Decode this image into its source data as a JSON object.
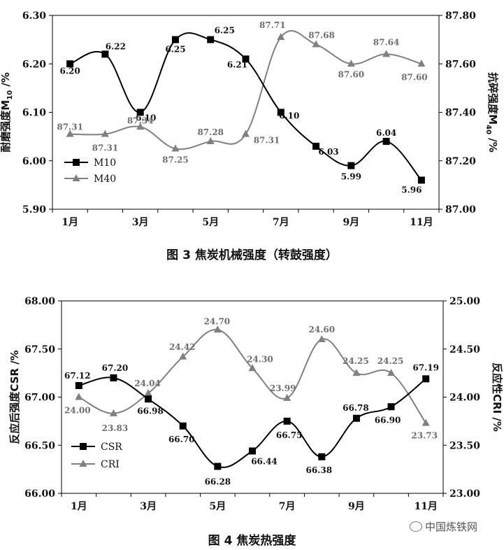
{
  "chart_data": [
    {
      "type": "line",
      "caption": "图 3    焦炭机械强度（转鼓强度）",
      "categories": [
        "1月",
        "2月",
        "3月",
        "4月",
        "5月",
        "6月",
        "7月",
        "8月",
        "9月",
        "10月",
        "11月"
      ],
      "x_tick_labels": [
        "1月",
        "",
        "3月",
        "",
        "5月",
        "",
        "7月",
        "",
        "9月",
        "",
        "11月"
      ],
      "series": [
        {
          "name": "M10",
          "axis": "left",
          "color": "#000000",
          "marker": "square",
          "values": [
            6.2,
            6.22,
            6.1,
            6.25,
            6.25,
            6.21,
            6.1,
            6.03,
            5.99,
            6.04,
            5.96
          ],
          "labels": [
            "6.20",
            "6.22",
            "6.10",
            "6.25",
            "6.25",
            "6.21",
            "6.10",
            "6.03",
            "5.99",
            "6.04",
            "5.96"
          ]
        },
        {
          "name": "M40",
          "axis": "right",
          "color": "#808080",
          "marker": "triangle",
          "values": [
            87.31,
            87.31,
            87.34,
            87.25,
            87.28,
            87.31,
            87.71,
            87.68,
            87.6,
            87.64,
            87.6
          ],
          "labels": [
            "87.31",
            "87.31",
            "87.34",
            "87.25",
            "87.28",
            "87.31",
            "87.71",
            "87.68",
            "87.60",
            "87.64",
            "87.60"
          ]
        }
      ],
      "y_left": {
        "label": "耐磨强度M10 /%",
        "label_main": "耐磨强度M",
        "label_sub": "10",
        "label_unit": " /%",
        "ylim": [
          5.9,
          6.3
        ],
        "ticks": [
          "5.90",
          "6.00",
          "6.10",
          "6.20",
          "6.30"
        ]
      },
      "y_right": {
        "label": "抗碎强度M40 /%",
        "label_main": "抗碎强度M",
        "label_sub": "40",
        "label_unit": " /%",
        "ylim": [
          87.0,
          87.8
        ],
        "ticks": [
          "87.00",
          "87.20",
          "87.40",
          "87.60",
          "87.80"
        ]
      },
      "legend": [
        "M10",
        "M40"
      ],
      "legend_position": "bottom-left"
    },
    {
      "type": "line",
      "caption": "图 4    焦炭热强度",
      "categories": [
        "1月",
        "2月",
        "3月",
        "4月",
        "5月",
        "6月",
        "7月",
        "8月",
        "9月",
        "10月",
        "11月"
      ],
      "x_tick_labels": [
        "1月",
        "",
        "3月",
        "",
        "5月",
        "",
        "7月",
        "",
        "9月",
        "",
        "11月"
      ],
      "series": [
        {
          "name": "CSR",
          "axis": "left",
          "color": "#000000",
          "marker": "square",
          "values": [
            67.12,
            67.2,
            66.98,
            66.7,
            66.28,
            66.44,
            66.75,
            66.38,
            66.78,
            66.9,
            67.19
          ],
          "labels": [
            "67.12",
            "67.20",
            "66.98",
            "66.70",
            "66.28",
            "66.44",
            "66.75",
            "66.38",
            "66.78",
            "66.90",
            "67.19"
          ]
        },
        {
          "name": "CRI",
          "axis": "right",
          "color": "#808080",
          "marker": "triangle",
          "values": [
            24.0,
            23.83,
            24.04,
            24.42,
            24.7,
            24.3,
            23.99,
            24.6,
            24.25,
            24.25,
            23.73
          ],
          "labels": [
            "24.00",
            "23.83",
            "24.04",
            "24.42",
            "24.70",
            "24.30",
            "23.99",
            "24.60",
            "24.25",
            "24.25",
            "23.73"
          ]
        }
      ],
      "y_left": {
        "label": "反应后强度CSR /%",
        "label_main": "反应后强度CSR",
        "label_sub": "",
        "label_unit": " /%",
        "ylim": [
          66.0,
          68.0
        ],
        "ticks": [
          "66.00",
          "66.50",
          "67.00",
          "67.50",
          "68.00"
        ]
      },
      "y_right": {
        "label": "反应性CRI /%",
        "label_main": "反应性CRI",
        "label_sub": "",
        "label_unit": " /%",
        "ylim": [
          23.0,
          25.0
        ],
        "ticks": [
          "23.00",
          "23.50",
          "24.00",
          "24.50",
          "25.00"
        ]
      },
      "legend": [
        "CSR",
        "CRI"
      ],
      "legend_position": "bottom-left"
    }
  ],
  "watermark": "中国炼铁网"
}
